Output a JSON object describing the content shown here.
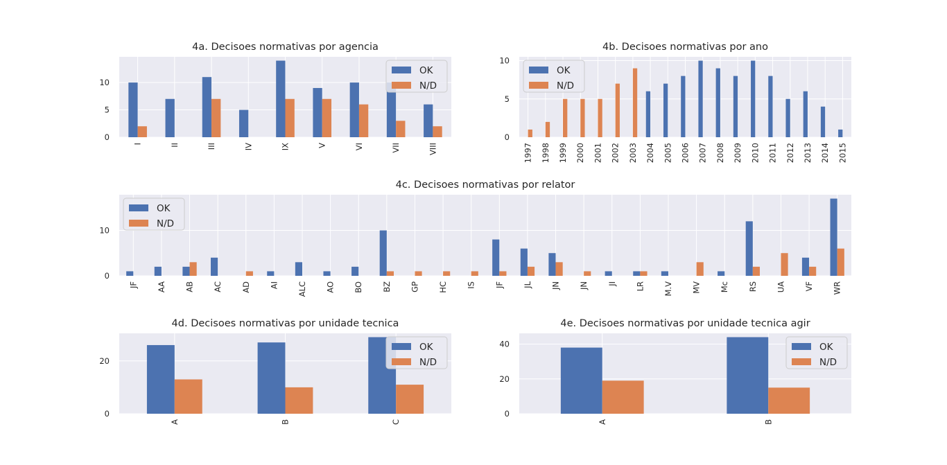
{
  "chart_data": [
    {
      "type": "bar",
      "title": "4a. Decisoes normativas por agencia",
      "categories": [
        "I",
        "II",
        "III",
        "IV",
        "IX",
        "V",
        "VI",
        "VII",
        "VIII"
      ],
      "series": [
        {
          "name": "OK",
          "values": [
            10,
            7,
            11,
            5,
            14,
            9,
            10,
            10,
            6
          ]
        },
        {
          "name": "N/D",
          "values": [
            2,
            0,
            7,
            0,
            7,
            7,
            6,
            3,
            2
          ]
        }
      ],
      "ylim": [
        0,
        14.7
      ],
      "yticks": [
        0,
        5,
        10
      ],
      "legend": "upper right",
      "grid": true
    },
    {
      "type": "bar",
      "title": "4b. Decisoes normativas por ano",
      "categories": [
        "1997",
        "1998",
        "1999",
        "2000",
        "2001",
        "2002",
        "2003",
        "2004",
        "2005",
        "2006",
        "2007",
        "2008",
        "2009",
        "2010",
        "2011",
        "2012",
        "2013",
        "2014",
        "2015"
      ],
      "series": [
        {
          "name": "OK",
          "values": [
            0,
            0,
            0,
            0,
            0,
            0,
            0,
            6,
            7,
            8,
            10,
            9,
            8,
            10,
            8,
            5,
            6,
            4,
            1
          ]
        },
        {
          "name": "N/D",
          "values": [
            1,
            2,
            5,
            5,
            5,
            7,
            9,
            0,
            0,
            0,
            0,
            0,
            0,
            0,
            0,
            0,
            0,
            0,
            0
          ]
        }
      ],
      "ylim": [
        0,
        10.5
      ],
      "yticks": [
        0,
        5,
        10
      ],
      "legend": "upper left",
      "grid": true
    },
    {
      "type": "bar",
      "title": "4c. Decisoes normativas por relator",
      "categories": [
        "JF",
        "AA",
        "AB",
        "AC",
        "AD",
        "AI",
        "ALC",
        "AO",
        "BO",
        "BZ",
        "GP",
        "HC",
        "IS",
        "JF",
        "JL",
        "JN",
        "JN",
        "JI",
        "LR",
        "M.V",
        "MV",
        "Mc",
        "RS",
        "UA",
        "VF",
        "WR"
      ],
      "series": [
        {
          "name": "OK",
          "values": [
            1,
            2,
            2,
            4,
            0,
            1,
            3,
            1,
            2,
            10,
            0,
            0,
            0,
            8,
            6,
            5,
            0,
            1,
            1,
            1,
            0,
            1,
            12,
            0,
            4,
            17
          ]
        },
        {
          "name": "N/D",
          "values": [
            0,
            0,
            3,
            0,
            1,
            0,
            0,
            0,
            0,
            1,
            1,
            1,
            1,
            1,
            2,
            3,
            1,
            0,
            1,
            0,
            3,
            0,
            2,
            5,
            2,
            6
          ]
        }
      ],
      "ylim": [
        0,
        17.85
      ],
      "yticks": [
        0,
        10
      ],
      "legend": "upper left",
      "grid": true
    },
    {
      "type": "bar",
      "title": "4d. Decisoes normativas por unidade tecnica",
      "categories": [
        "A",
        "B",
        "C"
      ],
      "series": [
        {
          "name": "OK",
          "values": [
            26,
            27,
            29
          ]
        },
        {
          "name": "N/D",
          "values": [
            13,
            10,
            11
          ]
        }
      ],
      "ylim": [
        0,
        30.45
      ],
      "yticks": [
        0,
        20
      ],
      "legend": "upper right",
      "grid": true
    },
    {
      "type": "bar",
      "title": "4e. Decisoes normativas por unidade tecnica agir",
      "categories": [
        "A",
        "B"
      ],
      "series": [
        {
          "name": "OK",
          "values": [
            38,
            44
          ]
        },
        {
          "name": "N/D",
          "values": [
            19,
            15
          ]
        }
      ],
      "ylim": [
        0,
        46.2
      ],
      "yticks": [
        0,
        20,
        40
      ],
      "legend": "upper right",
      "grid": true
    }
  ],
  "colors": {
    "OK": "#4c72b0",
    "N/D": "#dd8452",
    "plot_bg": "#eaeaf2",
    "grid": "#ffffff",
    "text": "#262626"
  }
}
